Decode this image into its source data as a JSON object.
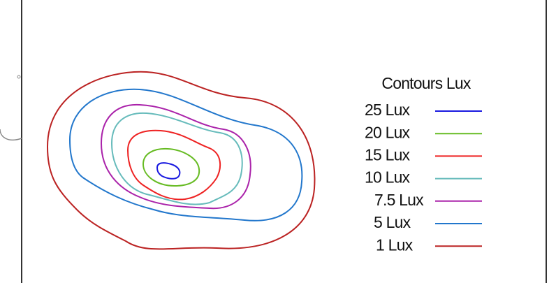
{
  "legend": {
    "title": "Contours Lux",
    "items": [
      {
        "label": "25 Lux",
        "color": "#1a1ae0"
      },
      {
        "label": "20 Lux",
        "color": "#66bb22"
      },
      {
        "label": "15 Lux",
        "color": "#ee2222"
      },
      {
        "label": "10 Lux",
        "color": "#66bbbb"
      },
      {
        "label": "7.5 Lux",
        "color": "#aa22aa"
      },
      {
        "label": "5 Lux",
        "color": "#2277cc"
      },
      {
        "label": "1 Lux",
        "color": "#bb2222"
      }
    ]
  }
}
